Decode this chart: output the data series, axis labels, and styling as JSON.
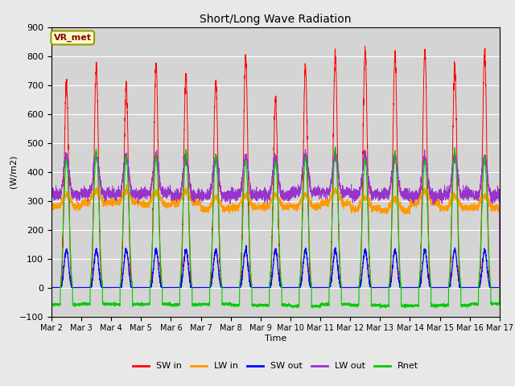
{
  "title": "Short/Long Wave Radiation",
  "xlabel": "Time",
  "ylabel": "(W/m2)",
  "ylim": [
    -100,
    900
  ],
  "annotation": "VR_met",
  "yticks": [
    -100,
    0,
    100,
    200,
    300,
    400,
    500,
    600,
    700,
    800,
    900
  ],
  "fig_bg_color": "#e8e8e8",
  "plot_bg_color": "#d4d4d4",
  "legend_entries": [
    "SW in",
    "LW in",
    "SW out",
    "LW out",
    "Rnet"
  ],
  "legend_colors": [
    "#ff0000",
    "#ff9900",
    "#0000ff",
    "#9933cc",
    "#00cc00"
  ],
  "n_days": 15,
  "start_day": 2,
  "sw_in_peaks": [
    710,
    760,
    690,
    770,
    730,
    720,
    800,
    650,
    760,
    800,
    825,
    800,
    820,
    760,
    810
  ],
  "lw_in_base": 275,
  "sw_out_peak": 130,
  "lw_out_base": 320,
  "lw_out_day_bump": 130,
  "rnet_peak": 450,
  "rnet_night": -60
}
